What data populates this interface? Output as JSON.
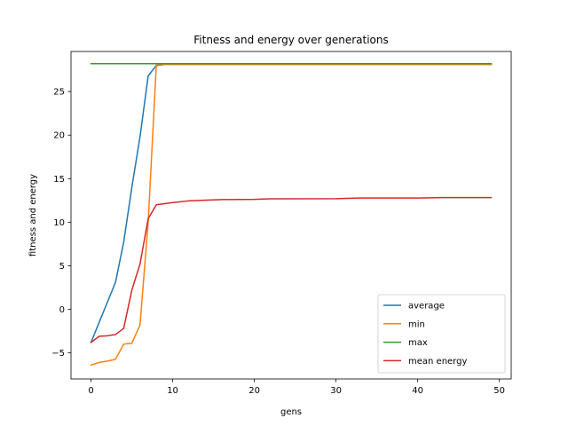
{
  "chart_data": {
    "type": "line",
    "title": "Fitness and energy over generations",
    "xlabel": "gens",
    "ylabel": "fitness and energy",
    "xlim": [
      -2.45,
      51.45
    ],
    "ylim": [
      -8.0,
      29.6
    ],
    "xticks": [
      0,
      10,
      20,
      30,
      40,
      50
    ],
    "yticks": [
      -5,
      0,
      5,
      10,
      15,
      20,
      25
    ],
    "grid": false,
    "legend_position": "lower right",
    "series": [
      {
        "name": "average",
        "color": "#1f77b4",
        "x": [
          0,
          1,
          2,
          3,
          4,
          5,
          6,
          7,
          8,
          9,
          49
        ],
        "y": [
          -3.8,
          -1.5,
          0.8,
          3.1,
          7.7,
          14.0,
          19.8,
          26.8,
          28.0,
          28.1,
          28.1
        ]
      },
      {
        "name": "min",
        "color": "#ff7f0e",
        "x": [
          0,
          1,
          2,
          3,
          4,
          5,
          6,
          7,
          8,
          9,
          49
        ],
        "y": [
          -6.4,
          -6.1,
          -5.95,
          -5.75,
          -4.0,
          -3.9,
          -1.8,
          10.0,
          28.1,
          28.1,
          28.1
        ]
      },
      {
        "name": "max",
        "color": "#2ca02c",
        "x": [
          0,
          49
        ],
        "y": [
          28.2,
          28.2
        ]
      },
      {
        "name": "mean energy",
        "color": "#d62728",
        "x": [
          0,
          1,
          2,
          3,
          4,
          5,
          6,
          7,
          8,
          10,
          12,
          16,
          20,
          22,
          30,
          33,
          40,
          43,
          49
        ],
        "y": [
          -3.8,
          -3.1,
          -3.05,
          -2.9,
          -2.2,
          2.2,
          5.2,
          10.4,
          12.0,
          12.25,
          12.45,
          12.6,
          12.62,
          12.68,
          12.7,
          12.78,
          12.78,
          12.83,
          12.83
        ]
      }
    ]
  }
}
